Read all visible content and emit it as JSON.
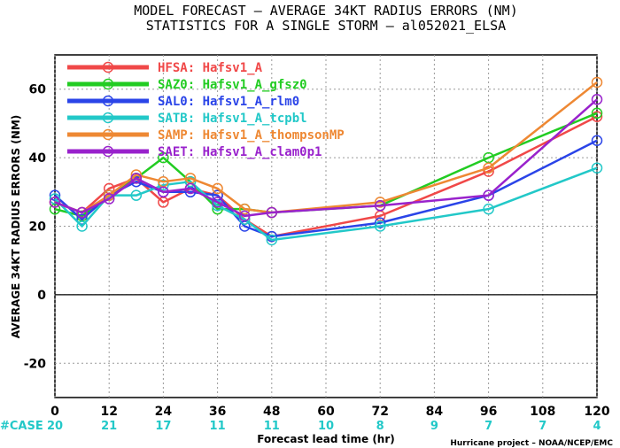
{
  "chart_data": {
    "type": "line",
    "title": "MODEL FORECAST – AVERAGE 34KT RADIUS ERRORS (NM)",
    "subtitle": "STATISTICS FOR A SINGLE STORM – al052021_ELSA",
    "xlabel": "Forecast lead time (hr)",
    "ylabel": "AVERAGE 34KT RADIUS ERRORS (NM)",
    "credit": "Hurricane project – NOAA/NCEP/EMC",
    "xlim": [
      0,
      120
    ],
    "ylim": [
      -30,
      70
    ],
    "x_ticks": [
      "0",
      "12",
      "24",
      "36",
      "48",
      "60",
      "72",
      "84",
      "96",
      "108",
      "120"
    ],
    "y_ticks": [
      "-20",
      "0",
      "20",
      "40",
      "60"
    ],
    "grid": true,
    "legend_position": "top-left",
    "cases_label": "#CASE",
    "cases": [
      {
        "x": 0,
        "n": "20"
      },
      {
        "x": 12,
        "n": "21"
      },
      {
        "x": 24,
        "n": "17"
      },
      {
        "x": 36,
        "n": "11"
      },
      {
        "x": 48,
        "n": "11"
      },
      {
        "x": 60,
        "n": "10"
      },
      {
        "x": 72,
        "n": "8"
      },
      {
        "x": 84,
        "n": "9"
      },
      {
        "x": 96,
        "n": "7"
      },
      {
        "x": 108,
        "n": "7"
      },
      {
        "x": 120,
        "n": "4"
      }
    ],
    "x": [
      0,
      6,
      12,
      18,
      24,
      30,
      36,
      42,
      48,
      72,
      96,
      120
    ],
    "series": [
      {
        "name": "HFSA:  Hafsv1_A",
        "color": "#f04848",
        "values": [
          27,
          24,
          31,
          34,
          27,
          31,
          29,
          22,
          17,
          23,
          36,
          52
        ]
      },
      {
        "name": "SAZ0:  Hafsv1_A_gfsz0",
        "color": "#22cc22",
        "values": [
          25,
          23,
          29,
          34,
          40,
          33,
          25,
          25,
          24,
          26,
          40,
          53
        ]
      },
      {
        "name": "SAL0:  Hafsv1_A_rlm0",
        "color": "#2a44e8",
        "values": [
          29,
          22,
          29,
          33,
          30,
          30,
          29,
          20,
          17,
          21,
          29,
          45
        ]
      },
      {
        "name": "SATB:  Hafsv1_A_tcpbl",
        "color": "#22c8c8",
        "values": [
          28,
          20,
          29,
          29,
          32,
          33,
          26,
          22,
          16,
          20,
          25,
          37
        ]
      },
      {
        "name": "SAMP:  Hafsv1_A_thompsonMP",
        "color": "#ee8833",
        "values": [
          27,
          24,
          29,
          35,
          33,
          34,
          31,
          25,
          24,
          27,
          37,
          62
        ]
      },
      {
        "name": "SAET:  Hafsv1_A_clam0p1",
        "color": "#9922cc",
        "values": [
          27,
          24,
          28,
          34,
          30,
          31,
          27,
          23,
          24,
          26,
          29,
          57
        ]
      }
    ]
  }
}
